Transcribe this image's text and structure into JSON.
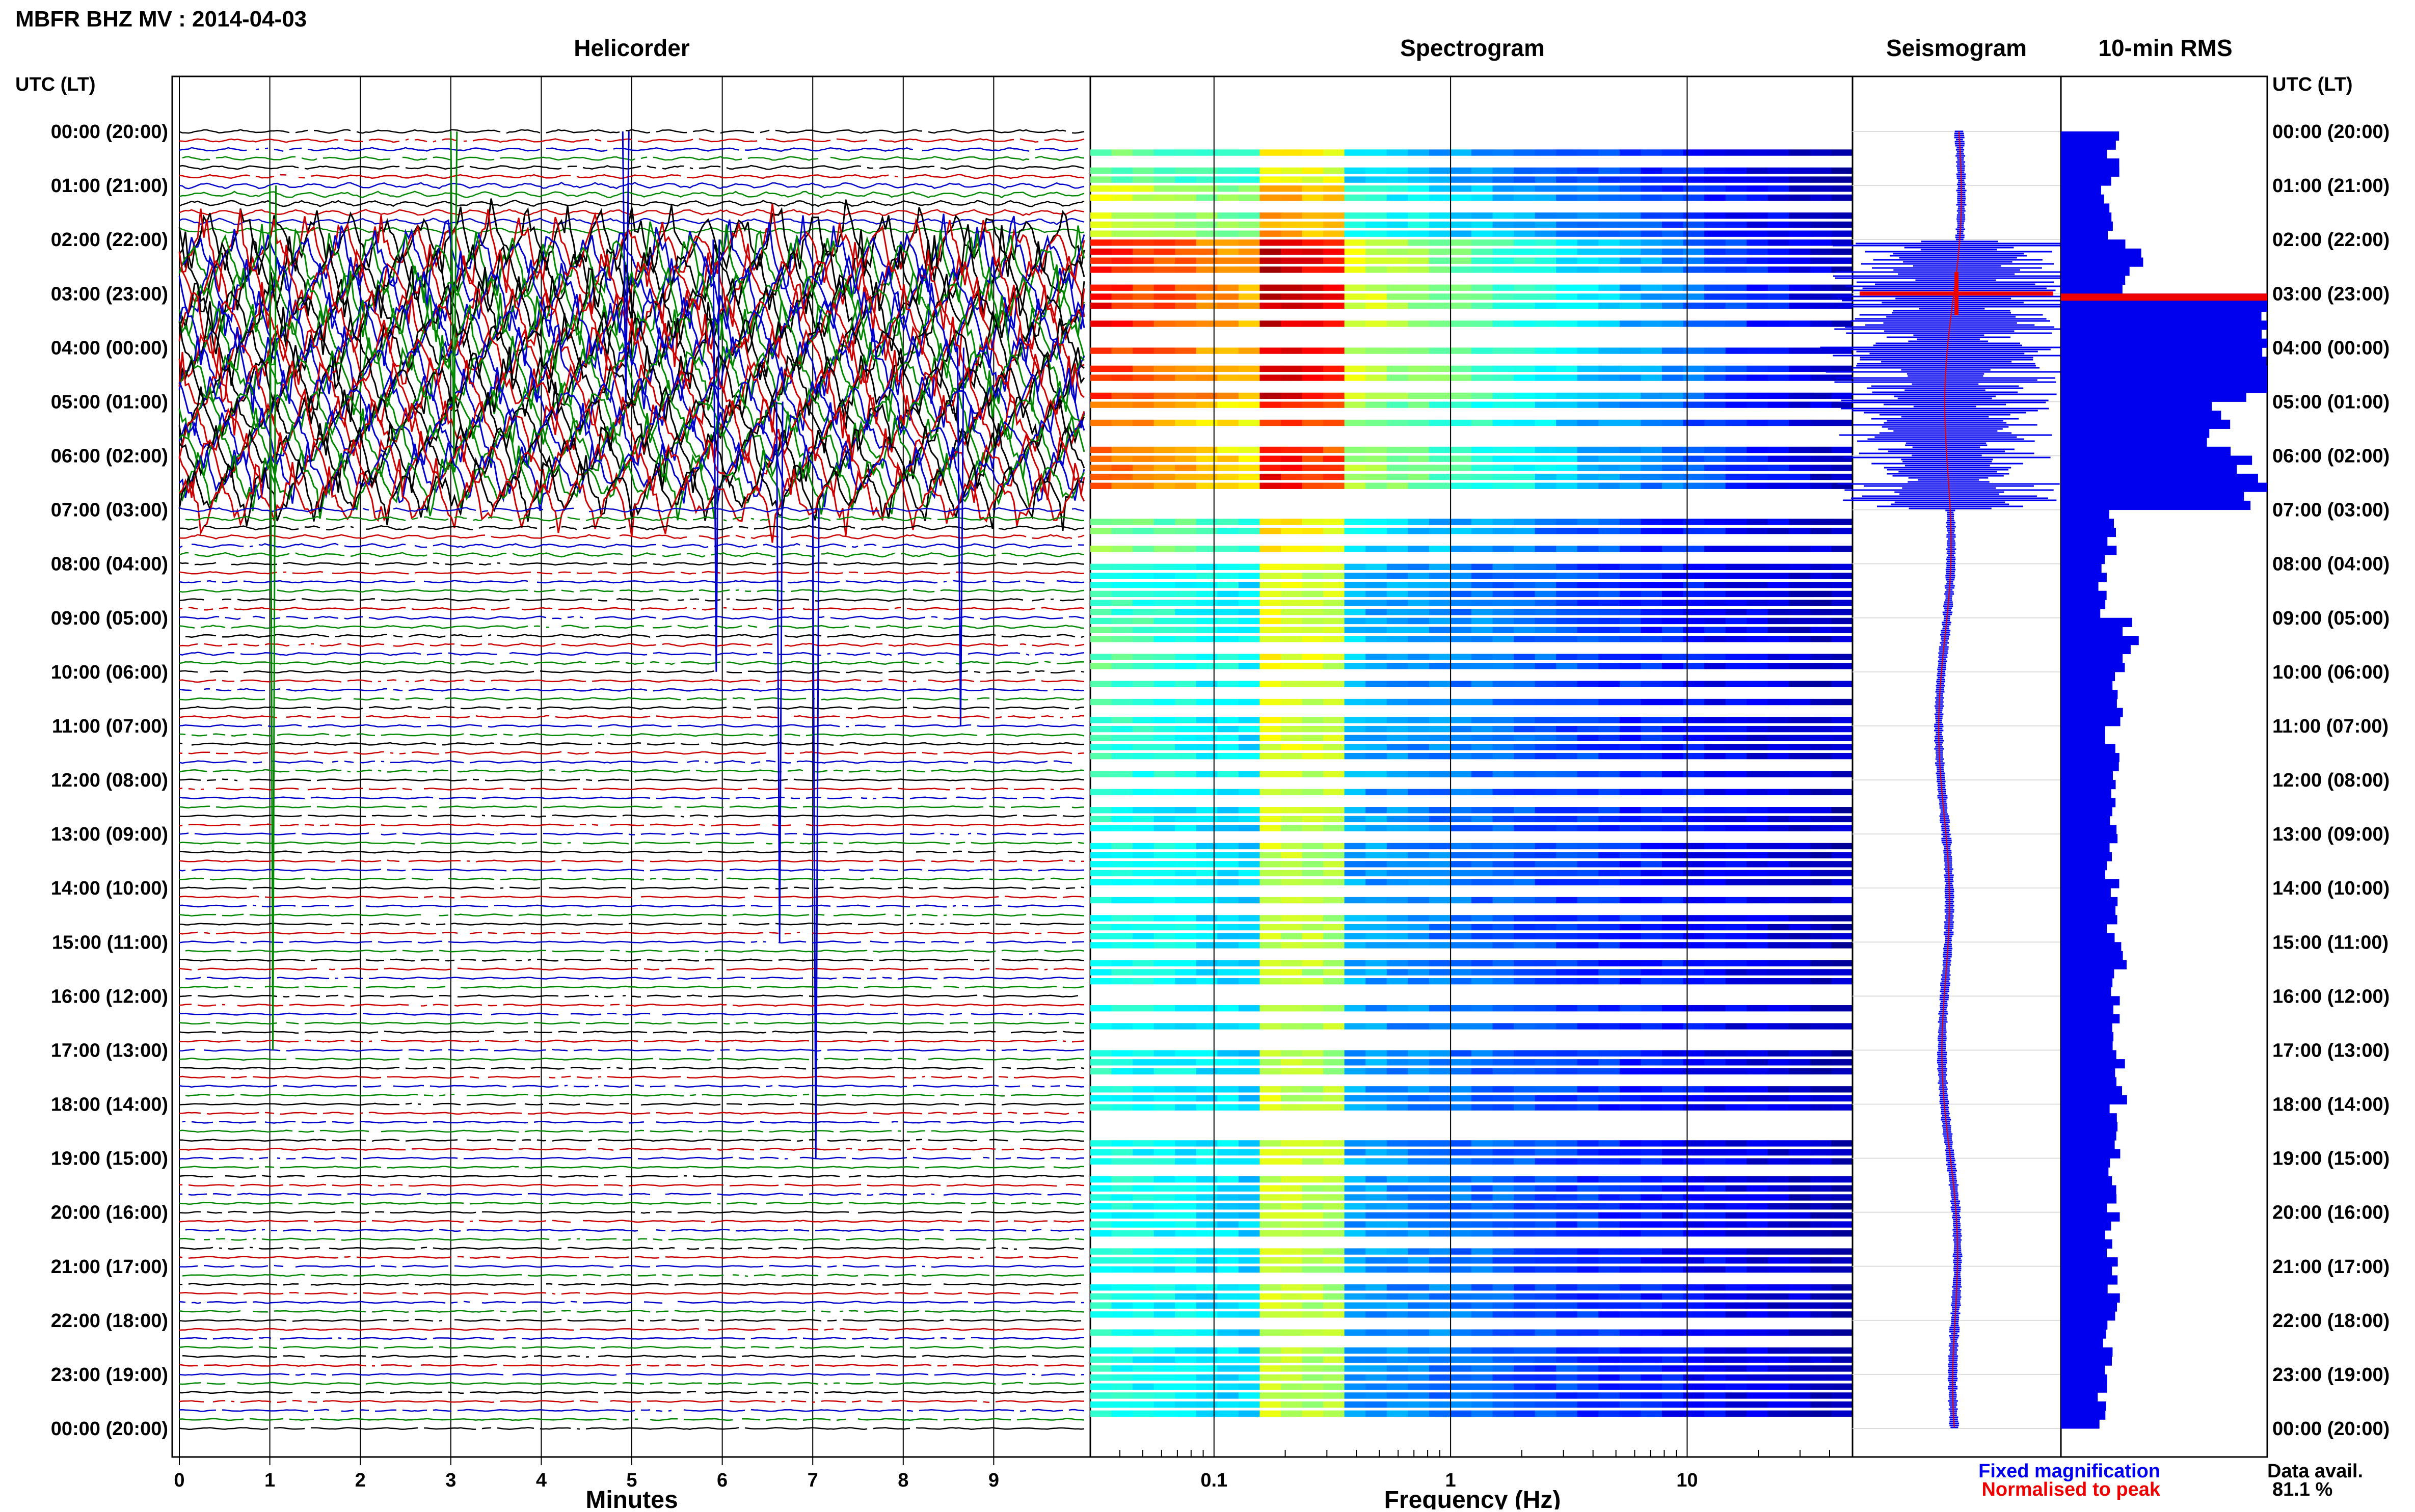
{
  "title": "MBFR BHZ MV : 2014-04-03",
  "panels": {
    "helicorder": "Helicorder",
    "spectrogram": "Spectrogram",
    "seismogram": "Seismogram",
    "rms": "10-min RMS"
  },
  "time_axis_label": "UTC (LT)",
  "time_ticks": [
    "00:00 (20:00)",
    "01:00 (21:00)",
    "02:00 (22:00)",
    "03:00 (23:00)",
    "04:00 (00:00)",
    "05:00 (01:00)",
    "06:00 (02:00)",
    "07:00 (03:00)",
    "08:00 (04:00)",
    "09:00 (05:00)",
    "10:00 (06:00)",
    "11:00 (07:00)",
    "12:00 (08:00)",
    "13:00 (09:00)",
    "14:00 (10:00)",
    "15:00 (11:00)",
    "16:00 (12:00)",
    "17:00 (13:00)",
    "18:00 (14:00)",
    "19:00 (15:00)",
    "20:00 (16:00)",
    "21:00 (17:00)",
    "22:00 (18:00)",
    "23:00 (19:00)",
    "00:00 (20:00)"
  ],
  "legend": {
    "fixed": "Fixed magnification",
    "normalised": "Normalised to peak",
    "fixed_color": "#0000ee",
    "normalised_color": "#ee0000"
  },
  "data_avail": {
    "label": "Data avail.",
    "value": "81.1 %"
  },
  "chart_data": [
    {
      "type": "line",
      "name": "helicorder",
      "xlabel": "Minutes",
      "x_ticks": [
        "0",
        "1",
        "2",
        "3",
        "4",
        "5",
        "6",
        "7",
        "8",
        "9"
      ],
      "xlim": [
        0,
        10
      ],
      "trace_colors": [
        "#000000",
        "#cc0000",
        "#0000cc",
        "#008800"
      ],
      "rows_per_hour": 6,
      "activity_by_hour": [
        0.3,
        0.5,
        1.0,
        1.0,
        0.95,
        0.8,
        0.85,
        0.35,
        0.2,
        0.25,
        0.2,
        0.2,
        0.15,
        0.15,
        0.15,
        0.15,
        0.15,
        0.15,
        0.15,
        0.15,
        0.15,
        0.15,
        0.15,
        0.15
      ]
    },
    {
      "type": "heatmap",
      "name": "spectrogram",
      "xlabel": "Frequency (Hz)",
      "x_scale": "log",
      "xlim": [
        0.03,
        50
      ],
      "x_ticks": [
        "0.1",
        "1",
        "10"
      ],
      "colormap": "jet"
    },
    {
      "type": "line",
      "name": "seismogram",
      "series": [
        {
          "name": "Fixed magnification",
          "color": "#0000ee"
        },
        {
          "name": "Normalised to peak",
          "color": "#ee0000"
        }
      ]
    },
    {
      "type": "bar",
      "name": "10-min RMS",
      "hours": [
        0,
        1,
        2,
        3,
        4,
        5,
        6,
        7,
        8,
        9,
        10,
        11,
        12,
        13,
        14,
        15,
        16,
        17,
        18,
        19,
        20,
        21,
        22,
        23
      ],
      "values": [
        0.25,
        0.22,
        0.35,
        1.0,
        1.0,
        0.75,
        0.9,
        0.25,
        0.2,
        0.35,
        0.28,
        0.25,
        0.25,
        0.25,
        0.25,
        0.28,
        0.28,
        0.28,
        0.25,
        0.25,
        0.25,
        0.25,
        0.22,
        0.2
      ]
    }
  ]
}
